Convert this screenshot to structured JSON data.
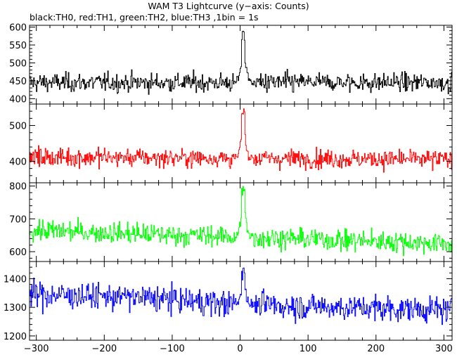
{
  "chart_data": {
    "type": "line",
    "title": "WAM T3 Lightcurve (y−axis: Counts)",
    "subtitle": "black:TH0, red:TH1, green:TH2, blue:TH3 ,1bin = 1s",
    "xlim": [
      -310,
      312
    ],
    "xticks": [
      -300,
      -200,
      -100,
      0,
      100,
      200,
      300
    ],
    "xtick_labels": [
      "−300",
      "−200",
      "−100",
      "0",
      "100",
      "200",
      "300"
    ],
    "grid": false,
    "panels": [
      {
        "name": "TH0",
        "color": "#000000",
        "ylim": [
          385,
          605
        ],
        "yticks": [
          400,
          450,
          500,
          550,
          600
        ],
        "ytick_labels": [
          "400",
          "450",
          "500",
          "550",
          "600"
        ],
        "baseline": [
          [
            -310,
            445
          ],
          [
            310,
            445
          ]
        ],
        "noise": 22,
        "peak": {
          "x": 4,
          "y": 600
        }
      },
      {
        "name": "TH1",
        "color": "#ff0000",
        "ylim": [
          340,
          560
        ],
        "yticks": [
          400,
          500
        ],
        "ytick_labels": [
          "400",
          "500"
        ],
        "baseline": [
          [
            -310,
            412
          ],
          [
            310,
            405
          ]
        ],
        "noise": 22,
        "peak": {
          "x": 4,
          "y": 550
        }
      },
      {
        "name": "TH2",
        "color": "#00ff00",
        "ylim": [
          570,
          810
        ],
        "yticks": [
          600,
          700,
          800
        ],
        "ytick_labels": [
          "600",
          "700",
          "800"
        ],
        "baseline": [
          [
            -310,
            665
          ],
          [
            310,
            625
          ]
        ],
        "noise": 27,
        "peak": {
          "x": 4,
          "y": 805
        }
      },
      {
        "name": "TH3",
        "color": "#0000ff",
        "ylim": [
          1185,
          1460
        ],
        "yticks": [
          1200,
          1300,
          1400
        ],
        "ytick_labels": [
          "1200",
          "1300",
          "1400"
        ],
        "baseline": [
          [
            -310,
            1345
          ],
          [
            -150,
            1335
          ],
          [
            0,
            1310
          ],
          [
            310,
            1290
          ]
        ],
        "noise": 38,
        "peak": {
          "x": 4,
          "y": 1440
        }
      }
    ]
  }
}
